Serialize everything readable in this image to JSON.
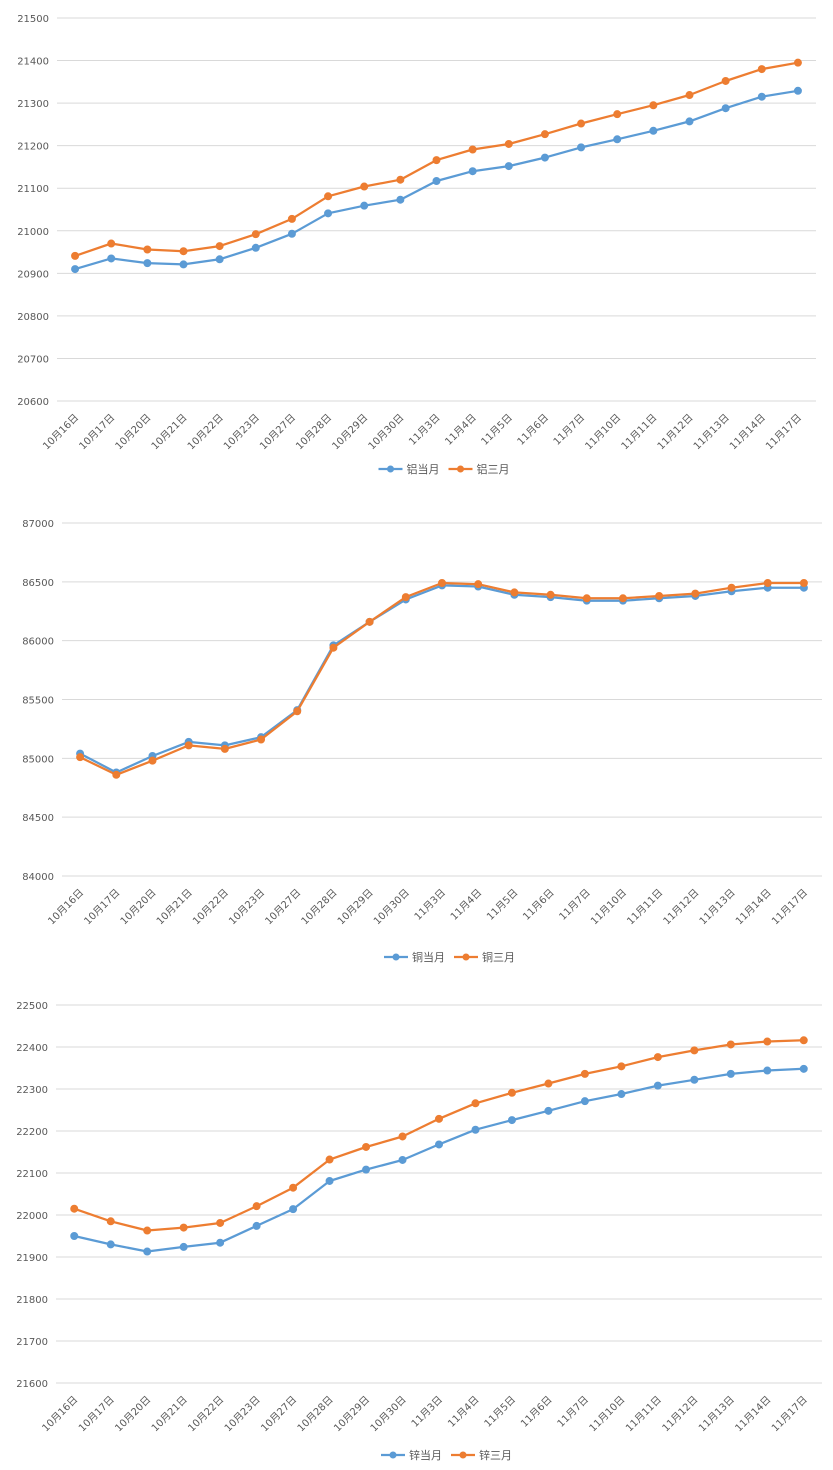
{
  "colors": {
    "series_current": "#5b9bd5",
    "series_three_month": "#ed7d31",
    "grid": "#d9d9d9",
    "text": "#595959"
  },
  "chart_data": [
    {
      "type": "line",
      "title": "",
      "xlabel": "",
      "ylabel": "",
      "categories": [
        "10月16日",
        "10月17日",
        "10月20日",
        "10月21日",
        "10月22日",
        "10月23日",
        "10月27日",
        "10月28日",
        "10月29日",
        "10月30日",
        "11月3日",
        "11月4日",
        "11月5日",
        "11月6日",
        "11月7日",
        "11月10日",
        "11月11日",
        "11月12日",
        "11月13日",
        "11月14日",
        "11月17日"
      ],
      "ylim": [
        20600,
        21500
      ],
      "yticks": [
        20600,
        20700,
        20800,
        20900,
        21000,
        21100,
        21200,
        21300,
        21400,
        21500
      ],
      "grid": true,
      "legend": "bottom-center",
      "series": [
        {
          "name": "铝当月",
          "values": [
            20910,
            20935,
            20924,
            20921,
            20933,
            20960,
            20993,
            21041,
            21059,
            21073,
            21117,
            21140,
            21152,
            21172,
            21196,
            21215,
            21235,
            21257,
            21288,
            21315,
            21329
          ]
        },
        {
          "name": "铝三月",
          "values": [
            20941,
            20970,
            20956,
            20952,
            20964,
            20992,
            21028,
            21081,
            21104,
            21120,
            21166,
            21191,
            21204,
            21227,
            21252,
            21274,
            21295,
            21319,
            21352,
            21380,
            21395
          ]
        }
      ]
    },
    {
      "type": "line",
      "title": "",
      "xlabel": "",
      "ylabel": "",
      "categories": [
        "10月16日",
        "10月17日",
        "10月20日",
        "10月21日",
        "10月22日",
        "10月23日",
        "10月27日",
        "10月28日",
        "10月29日",
        "10月30日",
        "11月3日",
        "11月4日",
        "11月5日",
        "11月6日",
        "11月7日",
        "11月10日",
        "11月11日",
        "11月12日",
        "11月13日",
        "11月14日",
        "11月17日"
      ],
      "ylim": [
        84000,
        87000
      ],
      "yticks": [
        84000,
        84500,
        85000,
        85500,
        86000,
        86500,
        87000
      ],
      "grid": true,
      "legend": "bottom-center",
      "series": [
        {
          "name": "铜当月",
          "values": [
            85040,
            84880,
            85020,
            85140,
            85110,
            85180,
            85410,
            85960,
            86160,
            86350,
            86470,
            86460,
            86390,
            86370,
            86340,
            86340,
            86360,
            86380,
            86420,
            86450,
            86450
          ]
        },
        {
          "name": "铜三月",
          "values": [
            85010,
            84860,
            84980,
            85110,
            85080,
            85160,
            85400,
            85940,
            86160,
            86370,
            86490,
            86480,
            86410,
            86390,
            86360,
            86360,
            86380,
            86400,
            86450,
            86490,
            86490
          ]
        }
      ]
    },
    {
      "type": "line",
      "title": "",
      "xlabel": "",
      "ylabel": "",
      "categories": [
        "10月16日",
        "10月17日",
        "10月20日",
        "10月21日",
        "10月22日",
        "10月23日",
        "10月27日",
        "10月28日",
        "10月29日",
        "10月30日",
        "11月3日",
        "11月4日",
        "11月5日",
        "11月6日",
        "11月7日",
        "11月10日",
        "11月11日",
        "11月12日",
        "11月13日",
        "11月14日",
        "11月17日"
      ],
      "ylim": [
        21600,
        22500
      ],
      "yticks": [
        21600,
        21700,
        21800,
        21900,
        22000,
        22100,
        22200,
        22300,
        22400,
        22500
      ],
      "grid": true,
      "legend": "bottom-center",
      "series": [
        {
          "name": "锌当月",
          "values": [
            21950,
            21930,
            21913,
            21924,
            21934,
            21974,
            22014,
            22081,
            22108,
            22131,
            22168,
            22203,
            22226,
            22248,
            22271,
            22288,
            22308,
            22322,
            22336,
            22344,
            22348
          ]
        },
        {
          "name": "锌三月",
          "values": [
            22015,
            21985,
            21963,
            21970,
            21981,
            22021,
            22065,
            22132,
            22162,
            22187,
            22229,
            22266,
            22291,
            22313,
            22336,
            22354,
            22376,
            22392,
            22406,
            22413,
            22416
          ]
        }
      ]
    }
  ]
}
